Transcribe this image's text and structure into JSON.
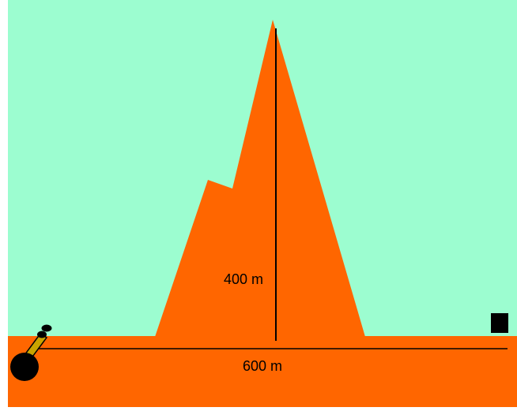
{
  "colors": {
    "sky": "#9cfdd0",
    "ground": "#ff6600",
    "mountain": "#ff6600",
    "measure_line": "#000000",
    "cannon_barrel": "#c8a400",
    "cannon_wheel": "#000000",
    "target": "#000000"
  },
  "scene": {
    "height_label": "400 m",
    "distance_label": "600 m"
  },
  "objects": {
    "cannon": "cannon-icon",
    "target": "target-box",
    "mountain": "mountain-shape"
  }
}
